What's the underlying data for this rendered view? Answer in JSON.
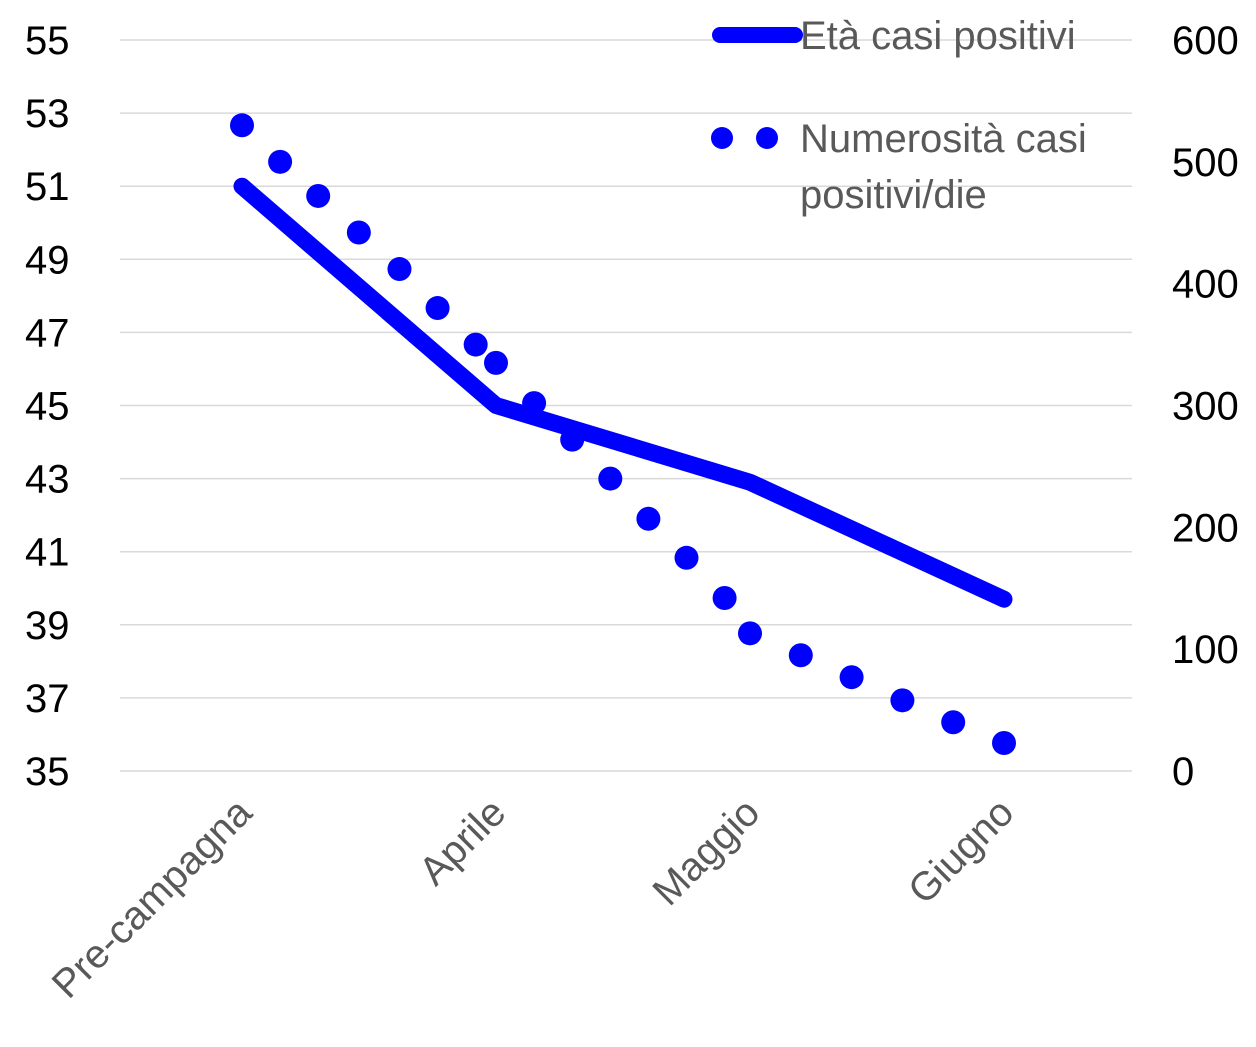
{
  "chart_data": {
    "type": "line",
    "categories": [
      "Pre-campagna",
      "Aprile",
      "Maggio",
      "Giugno"
    ],
    "y_left": {
      "ticks": [
        35,
        37,
        39,
        41,
        43,
        45,
        47,
        49,
        51,
        53,
        55
      ],
      "range": [
        35,
        55
      ]
    },
    "y_right": {
      "ticks": [
        0,
        100,
        200,
        300,
        400,
        500,
        600
      ],
      "range": [
        0,
        600
      ]
    },
    "grid": true,
    "legend_position": "top-right",
    "series": [
      {
        "name": "Età casi positivi",
        "axis": "left",
        "style": "solid",
        "color": "#0000ff",
        "x": [
          0,
          1,
          2,
          3
        ],
        "values": [
          51.0,
          45.0,
          42.9,
          39.7
        ]
      },
      {
        "name": "Numerosità casi positivi/die",
        "axis": "right",
        "style": "dotted",
        "color": "#0000ff",
        "x": [
          0,
          0.15,
          0.3,
          0.46,
          0.62,
          0.77,
          0.92,
          1.0,
          1.15,
          1.3,
          1.45,
          1.6,
          1.75,
          1.9,
          2.0,
          2.2,
          2.4,
          2.6,
          2.8,
          3.0
        ],
        "values": [
          530,
          500,
          472,
          442,
          412,
          380,
          350,
          335,
          302,
          272,
          240,
          207,
          175,
          142,
          113,
          95,
          77,
          58,
          40,
          23
        ]
      }
    ],
    "legend_lines": [
      [
        "Età casi positivi"
      ],
      [
        "Numerosità casi",
        "positivi/die"
      ]
    ]
  }
}
